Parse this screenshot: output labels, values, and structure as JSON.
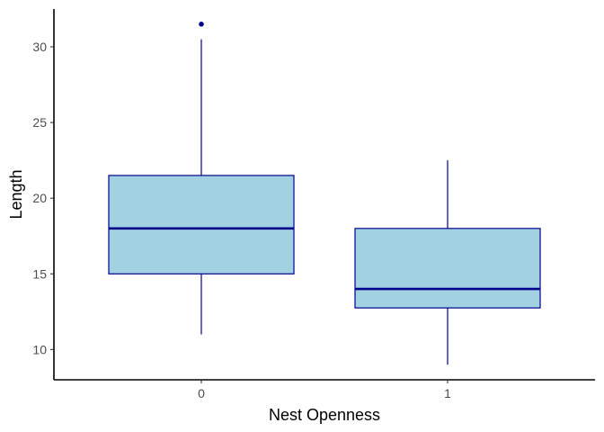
{
  "chart_data": {
    "type": "boxplot",
    "title": "",
    "xlabel": "Nest Openness",
    "ylabel": "Length",
    "categories": [
      "0",
      "1"
    ],
    "boxes": [
      {
        "category": "0",
        "whisker_low": 11,
        "q1": 15,
        "median": 18,
        "q3": 21.5,
        "whisker_high": 30.5,
        "outliers": [
          31.5
        ]
      },
      {
        "category": "1",
        "whisker_low": 9,
        "q1": 12.75,
        "median": 14,
        "q3": 18,
        "whisker_high": 22.5,
        "outliers": []
      }
    ],
    "yticks": [
      10,
      15,
      20,
      25,
      30
    ],
    "ylim": [
      8,
      32.5
    ],
    "grid": false,
    "colors": {
      "box_fill": "#a2d1e2",
      "box_stroke": "#00008b",
      "median": "#00008b",
      "whisker": "#00008b",
      "outlier": "#00008b",
      "axis": "#000000",
      "tick_label": "#4d4d4d"
    }
  }
}
